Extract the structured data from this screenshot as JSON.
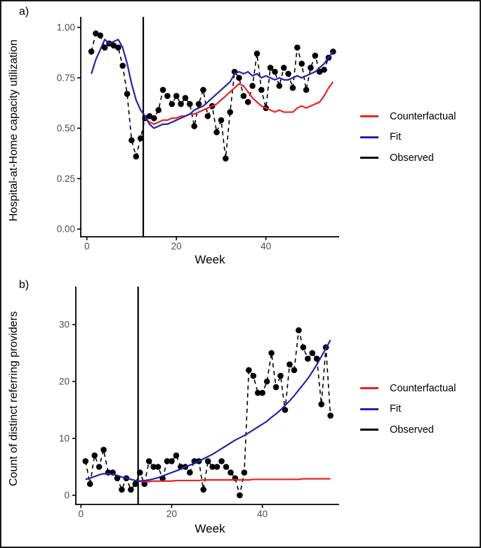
{
  "figure": {
    "panels": [
      {
        "label": "a)"
      },
      {
        "label": "b)"
      }
    ]
  },
  "colors": {
    "counterfactual": "#EE2222",
    "fit": "#2323AE",
    "observed": "#000000",
    "axis": "#000000",
    "tick_label": "#4d4d4d",
    "background": "#ffffff"
  },
  "chart_data": [
    {
      "panel": "a",
      "type": "line",
      "title": "",
      "xlabel": "Week",
      "ylabel": "Hospital-at-Home capacity utilization",
      "x_ticks": [
        0,
        20,
        40
      ],
      "x_tick_labels": [
        "0",
        "20",
        "40"
      ],
      "y_ticks": [
        0.0,
        0.25,
        0.5,
        0.75,
        1.0
      ],
      "y_tick_labels": [
        "0.00",
        "0.25",
        "0.50",
        "0.75",
        "1.00"
      ],
      "xlim": [
        -1,
        56
      ],
      "ylim": [
        0,
        1.04
      ],
      "grid": false,
      "intervention_week": 12.6,
      "weeks": [
        1,
        2,
        3,
        4,
        5,
        6,
        7,
        8,
        9,
        10,
        11,
        12,
        13,
        14,
        15,
        16,
        17,
        18,
        19,
        20,
        21,
        22,
        23,
        24,
        25,
        26,
        27,
        28,
        29,
        30,
        31,
        32,
        33,
        34,
        35,
        36,
        37,
        38,
        39,
        40,
        41,
        42,
        43,
        44,
        45,
        46,
        47,
        48,
        49,
        50,
        51,
        52,
        53,
        54,
        55
      ],
      "series": [
        {
          "name": "Observed",
          "role": "observed",
          "style": "dashed-points",
          "color": "#000000",
          "start_week": 1,
          "values": [
            0.88,
            0.97,
            0.96,
            0.9,
            0.92,
            0.91,
            0.9,
            0.81,
            0.67,
            0.44,
            0.36,
            0.45,
            0.55,
            0.56,
            0.55,
            0.59,
            0.69,
            0.66,
            0.62,
            0.66,
            0.62,
            0.65,
            0.62,
            0.51,
            0.62,
            0.69,
            0.56,
            0.61,
            0.48,
            0.54,
            0.35,
            0.58,
            0.78,
            0.75,
            0.66,
            0.63,
            0.71,
            0.87,
            0.69,
            0.6,
            0.8,
            0.78,
            0.71,
            0.8,
            0.77,
            0.7,
            0.9,
            0.82,
            0.69,
            0.8,
            0.86,
            0.78,
            0.79,
            0.85,
            0.88
          ]
        },
        {
          "name": "Counterfactual",
          "role": "counterfactual",
          "style": "line",
          "color": "#EE2222",
          "start_week": 13,
          "values": [
            0.55,
            0.53,
            0.52,
            0.53,
            0.54,
            0.54,
            0.55,
            0.55,
            0.56,
            0.56,
            0.57,
            0.57,
            0.58,
            0.59,
            0.6,
            0.61,
            0.62,
            0.64,
            0.66,
            0.68,
            0.7,
            0.72,
            0.71,
            0.68,
            0.65,
            0.63,
            0.61,
            0.6,
            0.59,
            0.58,
            0.59,
            0.58,
            0.58,
            0.58,
            0.6,
            0.61,
            0.6,
            0.61,
            0.62,
            0.63,
            0.66,
            0.7,
            0.73
          ]
        },
        {
          "name": "Fit",
          "role": "fit",
          "style": "line",
          "color": "#2323AE",
          "start_week": 1,
          "values": [
            0.77,
            0.84,
            0.89,
            0.94,
            0.92,
            0.93,
            0.94,
            0.9,
            0.82,
            0.72,
            0.64,
            0.59,
            0.56,
            0.52,
            0.5,
            0.51,
            0.52,
            0.52,
            0.53,
            0.54,
            0.55,
            0.56,
            0.57,
            0.59,
            0.6,
            0.61,
            0.63,
            0.65,
            0.67,
            0.69,
            0.71,
            0.73,
            0.77,
            0.78,
            0.77,
            0.78,
            0.76,
            0.77,
            0.75,
            0.76,
            0.75,
            0.74,
            0.75,
            0.74,
            0.74,
            0.75,
            0.76,
            0.75,
            0.76,
            0.77,
            0.78,
            0.8,
            0.82,
            0.85,
            0.88
          ]
        }
      ],
      "legend_items": [
        {
          "label": "Counterfactual",
          "color": "#EE2222"
        },
        {
          "label": "Fit",
          "color": "#2323AE"
        },
        {
          "label": "Observed",
          "color": "#000000"
        }
      ],
      "legend_position": "right"
    },
    {
      "panel": "b",
      "type": "line",
      "title": "",
      "xlabel": "Week",
      "ylabel": "Count of distinct referring providers",
      "x_ticks": [
        0,
        20,
        40
      ],
      "x_tick_labels": [
        "0",
        "20",
        "40"
      ],
      "y_ticks": [
        0,
        10,
        20,
        30
      ],
      "y_tick_labels": [
        "0",
        "10",
        "20",
        "30"
      ],
      "xlim": [
        -1,
        56
      ],
      "ylim": [
        0,
        36
      ],
      "grid": false,
      "intervention_week": 12.6,
      "weeks": [
        1,
        2,
        3,
        4,
        5,
        6,
        7,
        8,
        9,
        10,
        11,
        12,
        13,
        14,
        15,
        16,
        17,
        18,
        19,
        20,
        21,
        22,
        23,
        24,
        25,
        26,
        27,
        28,
        29,
        30,
        31,
        32,
        33,
        34,
        35,
        36,
        37,
        38,
        39,
        40,
        41,
        42,
        43,
        44,
        45,
        46,
        47,
        48,
        49,
        50,
        51,
        52,
        53,
        54,
        55
      ],
      "series": [
        {
          "name": "Observed",
          "role": "observed",
          "style": "dashed-points",
          "color": "#000000",
          "start_week": 1,
          "values": [
            6,
            2,
            7,
            5,
            8,
            4,
            4,
            3,
            1,
            3,
            1,
            2,
            4,
            2,
            6,
            5,
            5,
            3,
            6,
            6,
            7,
            5,
            5,
            4,
            6,
            6,
            1,
            6,
            5,
            5,
            6,
            5,
            4,
            3,
            0,
            4,
            22,
            21,
            18,
            18,
            20,
            25,
            19,
            21,
            15,
            23,
            22,
            29,
            26,
            24,
            25,
            24,
            16,
            26,
            14
          ]
        },
        {
          "name": "Counterfactual",
          "role": "counterfactual",
          "style": "line",
          "color": "#EE2222",
          "start_week": 13,
          "values": [
            2.4,
            2.4,
            2.4,
            2.5,
            2.5,
            2.5,
            2.5,
            2.5,
            2.6,
            2.6,
            2.6,
            2.6,
            2.6,
            2.6,
            2.7,
            2.7,
            2.7,
            2.7,
            2.7,
            2.7,
            2.7,
            2.7,
            2.7,
            2.7,
            2.7,
            2.8,
            2.8,
            2.8,
            2.8,
            2.8,
            2.8,
            2.8,
            2.8,
            2.8,
            2.8,
            2.8,
            2.9,
            2.9,
            2.9,
            2.9,
            2.9,
            2.9,
            2.9
          ]
        },
        {
          "name": "Fit",
          "role": "fit",
          "style": "line",
          "color": "#2323AE",
          "start_week": 1,
          "values": [
            2.8,
            3.0,
            3.3,
            3.6,
            3.8,
            3.8,
            3.7,
            3.5,
            3.2,
            3.0,
            2.8,
            2.6,
            2.5,
            2.6,
            2.7,
            2.9,
            3.1,
            3.4,
            3.7,
            4.0,
            4.3,
            4.6,
            5.0,
            5.3,
            5.6,
            6.0,
            6.4,
            6.8,
            7.2,
            7.7,
            8.2,
            8.7,
            9.2,
            9.7,
            10.1,
            10.5,
            11.0,
            11.5,
            12.0,
            12.5,
            13.0,
            13.7,
            14.3,
            15.0,
            15.8,
            16.6,
            17.5,
            18.5,
            19.5,
            20.5,
            21.7,
            23.0,
            24.4,
            25.8,
            27.3
          ]
        }
      ],
      "legend_items": [
        {
          "label": "Counterfactual",
          "color": "#EE2222"
        },
        {
          "label": "Fit",
          "color": "#2323AE"
        },
        {
          "label": "Observed",
          "color": "#000000"
        }
      ],
      "legend_position": "right"
    }
  ]
}
